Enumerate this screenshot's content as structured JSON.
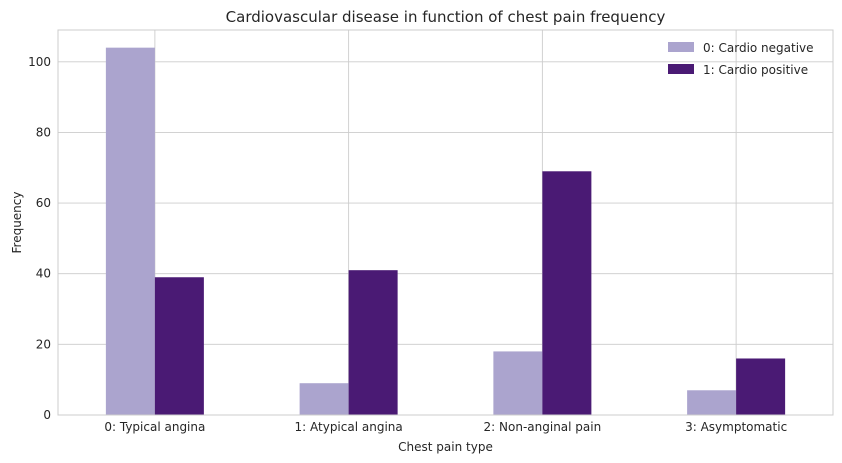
{
  "chart_data": {
    "type": "bar",
    "title": "Cardiovascular disease in function of chest pain frequency",
    "xlabel": "Chest pain type",
    "ylabel": "Frequency",
    "categories": [
      "0: Typical angina",
      "1: Atypical angina",
      "2: Non-anginal pain",
      "3: Asymptomatic"
    ],
    "series": [
      {
        "name": "0: Cardio negative",
        "values": [
          104,
          9,
          18,
          7
        ],
        "color": "#aba4ce"
      },
      {
        "name": "1: Cardio positive",
        "values": [
          39,
          41,
          69,
          16
        ],
        "color": "#4a1a74"
      }
    ],
    "ylim": [
      0,
      109
    ],
    "yticks": [
      0,
      20,
      40,
      60,
      80,
      100
    ],
    "grid": true,
    "legend": "top-right"
  }
}
